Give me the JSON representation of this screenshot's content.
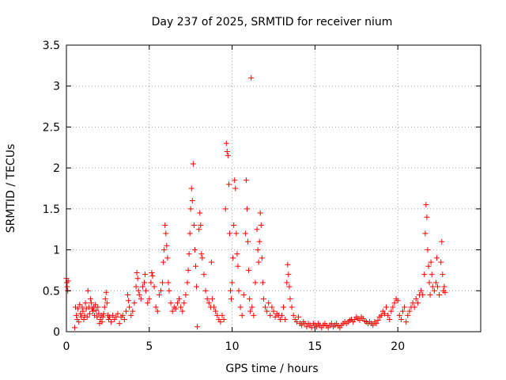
{
  "chart_data": {
    "type": "scatter",
    "title": "Day 237 of 2025, SRMTID for receiver nium",
    "xlabel": "GPS time / hours",
    "ylabel": "SRMTID / TECUs",
    "xlim": [
      0,
      25
    ],
    "ylim": [
      0,
      3.5
    ],
    "x_ticks": [
      0,
      5,
      10,
      15,
      20
    ],
    "x_tick_labels": [
      "0",
      "5",
      "10",
      "15",
      "20"
    ],
    "y_ticks": [
      0,
      0.5,
      1,
      1.5,
      2,
      2.5,
      3,
      3.5
    ],
    "y_tick_labels": [
      "0",
      "0.5",
      "1",
      "1.5",
      "2",
      "2.5",
      "3",
      "3.5"
    ],
    "grid": true,
    "marker": "+",
    "color": "#ff0000",
    "series": [
      {
        "name": "SRMTID",
        "points": [
          [
            0.0,
            0.65
          ],
          [
            0.02,
            0.6
          ],
          [
            0.05,
            0.55
          ],
          [
            0.08,
            0.5
          ],
          [
            0.1,
            0.62
          ],
          [
            0.5,
            0.05
          ],
          [
            0.55,
            0.3
          ],
          [
            0.6,
            0.2
          ],
          [
            0.65,
            0.15
          ],
          [
            0.7,
            0.28
          ],
          [
            0.75,
            0.12
          ],
          [
            0.8,
            0.33
          ],
          [
            0.85,
            0.22
          ],
          [
            0.9,
            0.18
          ],
          [
            0.95,
            0.3
          ],
          [
            1.0,
            0.25
          ],
          [
            1.05,
            0.15
          ],
          [
            1.1,
            0.2
          ],
          [
            1.15,
            0.35
          ],
          [
            1.2,
            0.28
          ],
          [
            1.25,
            0.18
          ],
          [
            1.3,
            0.5
          ],
          [
            1.35,
            0.3
          ],
          [
            1.4,
            0.22
          ],
          [
            1.45,
            0.4
          ],
          [
            1.5,
            0.35
          ],
          [
            1.55,
            0.28
          ],
          [
            1.6,
            0.25
          ],
          [
            1.65,
            0.3
          ],
          [
            1.7,
            0.2
          ],
          [
            1.75,
            0.33
          ],
          [
            1.8,
            0.26
          ],
          [
            1.85,
            0.18
          ],
          [
            1.9,
            0.3
          ],
          [
            1.95,
            0.22
          ],
          [
            2.0,
            0.1
          ],
          [
            2.05,
            0.15
          ],
          [
            2.1,
            0.2
          ],
          [
            2.15,
            0.12
          ],
          [
            2.2,
            0.18
          ],
          [
            2.25,
            0.22
          ],
          [
            2.3,
            0.3
          ],
          [
            2.35,
            0.4
          ],
          [
            2.4,
            0.48
          ],
          [
            2.45,
            0.35
          ],
          [
            2.5,
            0.2
          ],
          [
            2.55,
            0.15
          ],
          [
            2.6,
            0.18
          ],
          [
            2.7,
            0.12
          ],
          [
            2.8,
            0.2
          ],
          [
            2.9,
            0.15
          ],
          [
            3.0,
            0.18
          ],
          [
            3.1,
            0.22
          ],
          [
            3.2,
            0.1
          ],
          [
            3.3,
            0.18
          ],
          [
            3.4,
            0.2
          ],
          [
            3.5,
            0.15
          ],
          [
            3.6,
            0.25
          ],
          [
            3.7,
            0.45
          ],
          [
            3.75,
            0.38
          ],
          [
            3.8,
            0.3
          ],
          [
            3.9,
            0.2
          ],
          [
            4.0,
            0.25
          ],
          [
            4.1,
            0.35
          ],
          [
            4.2,
            0.55
          ],
          [
            4.25,
            0.72
          ],
          [
            4.3,
            0.65
          ],
          [
            4.35,
            0.5
          ],
          [
            4.4,
            0.45
          ],
          [
            4.5,
            0.4
          ],
          [
            4.6,
            0.55
          ],
          [
            4.7,
            0.6
          ],
          [
            4.75,
            0.7
          ],
          [
            4.8,
            0.5
          ],
          [
            4.9,
            0.35
          ],
          [
            5.0,
            0.4
          ],
          [
            5.1,
            0.6
          ],
          [
            5.15,
            0.72
          ],
          [
            5.2,
            0.68
          ],
          [
            5.3,
            0.55
          ],
          [
            5.4,
            0.3
          ],
          [
            5.5,
            0.25
          ],
          [
            5.6,
            0.45
          ],
          [
            5.7,
            0.5
          ],
          [
            5.8,
            0.6
          ],
          [
            5.85,
            0.85
          ],
          [
            5.9,
            1.0
          ],
          [
            5.95,
            1.3
          ],
          [
            6.0,
            1.2
          ],
          [
            6.05,
            1.05
          ],
          [
            6.1,
            0.9
          ],
          [
            6.15,
            0.6
          ],
          [
            6.2,
            0.5
          ],
          [
            6.3,
            0.35
          ],
          [
            6.4,
            0.25
          ],
          [
            6.5,
            0.3
          ],
          [
            6.6,
            0.28
          ],
          [
            6.7,
            0.35
          ],
          [
            6.8,
            0.4
          ],
          [
            6.9,
            0.3
          ],
          [
            7.0,
            0.25
          ],
          [
            7.1,
            0.35
          ],
          [
            7.2,
            0.45
          ],
          [
            7.3,
            0.6
          ],
          [
            7.35,
            0.75
          ],
          [
            7.4,
            0.95
          ],
          [
            7.45,
            1.2
          ],
          [
            7.5,
            1.5
          ],
          [
            7.55,
            1.75
          ],
          [
            7.6,
            1.6
          ],
          [
            7.65,
            2.05
          ],
          [
            7.7,
            1.3
          ],
          [
            7.75,
            1.0
          ],
          [
            7.8,
            0.8
          ],
          [
            7.85,
            0.55
          ],
          [
            7.9,
            0.06
          ],
          [
            8.0,
            1.25
          ],
          [
            8.05,
            1.45
          ],
          [
            8.1,
            1.3
          ],
          [
            8.15,
            0.95
          ],
          [
            8.2,
            0.9
          ],
          [
            8.3,
            0.7
          ],
          [
            8.4,
            0.5
          ],
          [
            8.5,
            0.4
          ],
          [
            8.6,
            0.35
          ],
          [
            8.7,
            0.3
          ],
          [
            8.75,
            0.85
          ],
          [
            8.8,
            0.4
          ],
          [
            8.9,
            0.3
          ],
          [
            9.0,
            0.25
          ],
          [
            9.1,
            0.2
          ],
          [
            9.2,
            0.15
          ],
          [
            9.3,
            0.12
          ],
          [
            9.4,
            0.2
          ],
          [
            9.5,
            0.15
          ],
          [
            9.6,
            1.5
          ],
          [
            9.65,
            2.3
          ],
          [
            9.7,
            2.2
          ],
          [
            9.75,
            2.15
          ],
          [
            9.8,
            1.8
          ],
          [
            9.85,
            1.2
          ],
          [
            9.9,
            0.5
          ],
          [
            9.95,
            0.4
          ],
          [
            10.0,
            0.6
          ],
          [
            10.05,
            0.9
          ],
          [
            10.1,
            1.3
          ],
          [
            10.15,
            1.85
          ],
          [
            10.2,
            1.75
          ],
          [
            10.25,
            1.2
          ],
          [
            10.3,
            0.95
          ],
          [
            10.35,
            0.8
          ],
          [
            10.4,
            0.5
          ],
          [
            10.5,
            0.3
          ],
          [
            10.6,
            0.2
          ],
          [
            10.7,
            0.45
          ],
          [
            10.8,
            1.2
          ],
          [
            10.85,
            1.85
          ],
          [
            10.9,
            1.5
          ],
          [
            10.95,
            1.1
          ],
          [
            11.0,
            0.75
          ],
          [
            11.05,
            0.4
          ],
          [
            11.1,
            0.25
          ],
          [
            11.15,
            3.1
          ],
          [
            11.2,
            0.3
          ],
          [
            11.3,
            0.2
          ],
          [
            11.4,
            0.6
          ],
          [
            11.5,
            1.25
          ],
          [
            11.55,
            1.0
          ],
          [
            11.6,
            0.85
          ],
          [
            11.65,
            1.1
          ],
          [
            11.7,
            1.45
          ],
          [
            11.75,
            1.3
          ],
          [
            11.8,
            0.9
          ],
          [
            11.85,
            0.6
          ],
          [
            11.9,
            0.4
          ],
          [
            12.0,
            0.3
          ],
          [
            12.1,
            0.25
          ],
          [
            12.2,
            0.35
          ],
          [
            12.3,
            0.2
          ],
          [
            12.4,
            0.3
          ],
          [
            12.5,
            0.25
          ],
          [
            12.6,
            0.18
          ],
          [
            12.7,
            0.22
          ],
          [
            12.8,
            0.2
          ],
          [
            12.9,
            0.15
          ],
          [
            13.0,
            0.2
          ],
          [
            13.1,
            0.3
          ],
          [
            13.2,
            0.15
          ],
          [
            13.3,
            0.6
          ],
          [
            13.35,
            0.82
          ],
          [
            13.4,
            0.7
          ],
          [
            13.45,
            0.55
          ],
          [
            13.5,
            0.4
          ],
          [
            13.6,
            0.3
          ],
          [
            13.7,
            0.2
          ],
          [
            13.8,
            0.15
          ],
          [
            13.9,
            0.12
          ],
          [
            14.0,
            0.18
          ],
          [
            14.1,
            0.1
          ],
          [
            14.2,
            0.08
          ],
          [
            14.3,
            0.12
          ],
          [
            14.4,
            0.1
          ],
          [
            14.5,
            0.06
          ],
          [
            14.6,
            0.1
          ],
          [
            14.7,
            0.08
          ],
          [
            14.8,
            0.05
          ],
          [
            14.9,
            0.1
          ],
          [
            15.0,
            0.08
          ],
          [
            15.1,
            0.06
          ],
          [
            15.2,
            0.1
          ],
          [
            15.3,
            0.08
          ],
          [
            15.4,
            0.05
          ],
          [
            15.5,
            0.08
          ],
          [
            15.6,
            0.1
          ],
          [
            15.7,
            0.07
          ],
          [
            15.8,
            0.05
          ],
          [
            15.9,
            0.08
          ],
          [
            16.0,
            0.1
          ],
          [
            16.1,
            0.06
          ],
          [
            16.2,
            0.08
          ],
          [
            16.3,
            0.1
          ],
          [
            16.4,
            0.07
          ],
          [
            16.5,
            0.05
          ],
          [
            16.6,
            0.08
          ],
          [
            16.7,
            0.1
          ],
          [
            16.8,
            0.12
          ],
          [
            16.9,
            0.1
          ],
          [
            17.0,
            0.12
          ],
          [
            17.1,
            0.14
          ],
          [
            17.2,
            0.15
          ],
          [
            17.3,
            0.12
          ],
          [
            17.4,
            0.15
          ],
          [
            17.5,
            0.18
          ],
          [
            17.6,
            0.16
          ],
          [
            17.7,
            0.14
          ],
          [
            17.8,
            0.18
          ],
          [
            17.9,
            0.16
          ],
          [
            18.0,
            0.13
          ],
          [
            18.1,
            0.12
          ],
          [
            18.2,
            0.1
          ],
          [
            18.3,
            0.12
          ],
          [
            18.4,
            0.1
          ],
          [
            18.5,
            0.08
          ],
          [
            18.6,
            0.12
          ],
          [
            18.7,
            0.1
          ],
          [
            18.8,
            0.14
          ],
          [
            18.9,
            0.18
          ],
          [
            19.0,
            0.2
          ],
          [
            19.1,
            0.25
          ],
          [
            19.2,
            0.22
          ],
          [
            19.3,
            0.3
          ],
          [
            19.4,
            0.2
          ],
          [
            19.5,
            0.15
          ],
          [
            19.6,
            0.25
          ],
          [
            19.7,
            0.3
          ],
          [
            19.8,
            0.35
          ],
          [
            19.9,
            0.4
          ],
          [
            20.0,
            0.38
          ],
          [
            20.1,
            0.2
          ],
          [
            20.2,
            0.15
          ],
          [
            20.3,
            0.25
          ],
          [
            20.4,
            0.3
          ],
          [
            20.5,
            0.12
          ],
          [
            20.6,
            0.2
          ],
          [
            20.7,
            0.25
          ],
          [
            20.8,
            0.3
          ],
          [
            20.9,
            0.35
          ],
          [
            21.0,
            0.3
          ],
          [
            21.1,
            0.4
          ],
          [
            21.2,
            0.35
          ],
          [
            21.3,
            0.45
          ],
          [
            21.4,
            0.5
          ],
          [
            21.5,
            0.45
          ],
          [
            21.6,
            0.7
          ],
          [
            21.65,
            1.2
          ],
          [
            21.7,
            1.55
          ],
          [
            21.75,
            1.4
          ],
          [
            21.8,
            1.0
          ],
          [
            21.85,
            0.8
          ],
          [
            21.9,
            0.6
          ],
          [
            21.95,
            0.45
          ],
          [
            22.0,
            0.85
          ],
          [
            22.05,
            0.7
          ],
          [
            22.1,
            0.55
          ],
          [
            22.2,
            0.5
          ],
          [
            22.3,
            0.6
          ],
          [
            22.35,
            0.9
          ],
          [
            22.4,
            0.55
          ],
          [
            22.5,
            0.45
          ],
          [
            22.6,
            0.85
          ],
          [
            22.65,
            1.1
          ],
          [
            22.7,
            0.7
          ],
          [
            22.75,
            0.5
          ],
          [
            22.8,
            0.55
          ],
          [
            22.85,
            0.48
          ]
        ]
      }
    ]
  }
}
